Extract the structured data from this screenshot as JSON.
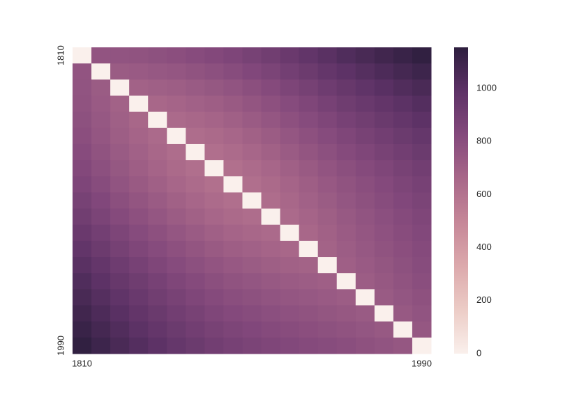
{
  "chart_data": {
    "type": "heatmap",
    "x": [
      "1810",
      null,
      null,
      null,
      null,
      null,
      null,
      null,
      null,
      null,
      null,
      null,
      null,
      null,
      null,
      null,
      null,
      null,
      "1990"
    ],
    "y": [
      "1810",
      null,
      null,
      null,
      null,
      null,
      null,
      null,
      null,
      null,
      null,
      null,
      null,
      null,
      null,
      null,
      null,
      null,
      "1990"
    ],
    "values": [
      [
        0,
        762,
        764,
        771,
        783,
        795,
        812,
        829,
        851,
        878,
        905,
        937,
        969,
        1001,
        1033,
        1060,
        1087,
        1114,
        1141
      ],
      [
        762,
        0,
        722,
        729,
        741,
        753,
        770,
        787,
        809,
        836,
        863,
        895,
        927,
        959,
        991,
        1018,
        1045,
        1072,
        1099
      ],
      [
        764,
        722,
        0,
        687,
        699,
        711,
        728,
        745,
        767,
        794,
        821,
        853,
        885,
        917,
        949,
        976,
        1003,
        1030,
        1057
      ],
      [
        771,
        729,
        687,
        0,
        662,
        674,
        691,
        708,
        730,
        757,
        784,
        816,
        848,
        880,
        912,
        939,
        966,
        993,
        1020
      ],
      [
        783,
        741,
        699,
        662,
        0,
        642,
        659,
        676,
        698,
        725,
        752,
        784,
        816,
        848,
        880,
        907,
        934,
        961,
        988
      ],
      [
        795,
        753,
        711,
        674,
        642,
        0,
        627,
        644,
        666,
        693,
        720,
        752,
        784,
        816,
        848,
        875,
        902,
        929,
        956
      ],
      [
        812,
        770,
        728,
        691,
        659,
        627,
        0,
        617,
        639,
        666,
        693,
        725,
        757,
        789,
        821,
        848,
        875,
        902,
        929
      ],
      [
        829,
        787,
        745,
        708,
        676,
        644,
        617,
        0,
        612,
        639,
        666,
        698,
        730,
        762,
        794,
        821,
        848,
        875,
        902
      ],
      [
        851,
        809,
        767,
        730,
        698,
        666,
        639,
        612,
        0,
        617,
        644,
        676,
        708,
        740,
        772,
        799,
        826,
        853,
        880
      ],
      [
        878,
        836,
        794,
        757,
        725,
        693,
        666,
        639,
        617,
        0,
        627,
        659,
        691,
        723,
        755,
        782,
        809,
        836,
        863
      ],
      [
        905,
        863,
        821,
        784,
        752,
        720,
        693,
        666,
        644,
        627,
        0,
        642,
        674,
        706,
        738,
        765,
        792,
        819,
        846
      ],
      [
        937,
        895,
        853,
        816,
        784,
        752,
        725,
        698,
        676,
        659,
        642,
        0,
        662,
        694,
        726,
        753,
        780,
        807,
        834
      ],
      [
        969,
        927,
        885,
        848,
        816,
        784,
        757,
        730,
        708,
        691,
        674,
        662,
        0,
        682,
        714,
        741,
        768,
        795,
        822
      ],
      [
        1001,
        959,
        917,
        880,
        848,
        816,
        789,
        762,
        740,
        723,
        706,
        694,
        682,
        0,
        702,
        729,
        756,
        783,
        810
      ],
      [
        1033,
        991,
        949,
        912,
        880,
        848,
        821,
        794,
        772,
        755,
        738,
        726,
        714,
        702,
        0,
        717,
        744,
        771,
        798
      ],
      [
        1060,
        1018,
        976,
        939,
        907,
        875,
        848,
        821,
        799,
        782,
        765,
        753,
        741,
        729,
        717,
        0,
        727,
        754,
        781
      ],
      [
        1087,
        1045,
        1003,
        966,
        934,
        902,
        875,
        848,
        826,
        809,
        792,
        780,
        768,
        756,
        744,
        727,
        0,
        737,
        764
      ],
      [
        1114,
        1072,
        1030,
        993,
        961,
        929,
        902,
        875,
        853,
        836,
        819,
        807,
        795,
        783,
        771,
        754,
        737,
        0,
        747
      ],
      [
        1141,
        1099,
        1057,
        1020,
        988,
        956,
        929,
        902,
        880,
        863,
        846,
        834,
        822,
        810,
        798,
        781,
        764,
        747,
        0
      ]
    ],
    "clim": [
      0,
      1155
    ],
    "cticks": [
      0,
      200,
      400,
      600,
      800,
      1000
    ],
    "colormap": [
      "#faf0ec",
      "#ecccc6",
      "#dca9ac",
      "#c68798",
      "#a86789",
      "#84497c",
      "#5d3266",
      "#2d1e3e"
    ]
  }
}
